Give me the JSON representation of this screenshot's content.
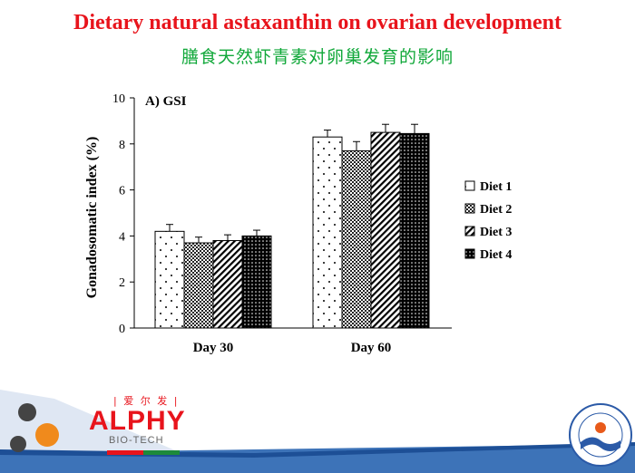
{
  "slide": {
    "title": "Dietary natural astaxanthin on ovarian development",
    "subtitle": "膳食天然虾青素对卵巢发育的影响"
  },
  "logo": {
    "chinese": "| 爱 尔 发 |",
    "name": "ALPHY",
    "sub": "BIO-TECH"
  },
  "colors": {
    "title": "#e8141c",
    "subtitle": "#11a83a",
    "banner_blue": "#3d73b8"
  },
  "chart_data": {
    "type": "bar",
    "panel_label": "A) GSI",
    "categories": [
      "Day 30",
      "Day 60"
    ],
    "ylabel": "Gonadosomatic index (%)",
    "ylim": [
      0,
      10
    ],
    "yticks": [
      0,
      2,
      4,
      6,
      8,
      10
    ],
    "legend_position": "right",
    "series": [
      {
        "name": "Diet 1",
        "pattern": "dots-sparse",
        "values": [
          4.2,
          8.3
        ],
        "errors": [
          0.3,
          0.3
        ]
      },
      {
        "name": "Diet 2",
        "pattern": "crosshatch",
        "values": [
          3.7,
          7.7
        ],
        "errors": [
          0.25,
          0.4
        ]
      },
      {
        "name": "Diet 3",
        "pattern": "diagonal",
        "values": [
          3.8,
          8.5
        ],
        "errors": [
          0.25,
          0.35
        ]
      },
      {
        "name": "Diet 4",
        "pattern": "dots-dense",
        "values": [
          4.0,
          8.45
        ],
        "errors": [
          0.25,
          0.4
        ]
      }
    ]
  }
}
